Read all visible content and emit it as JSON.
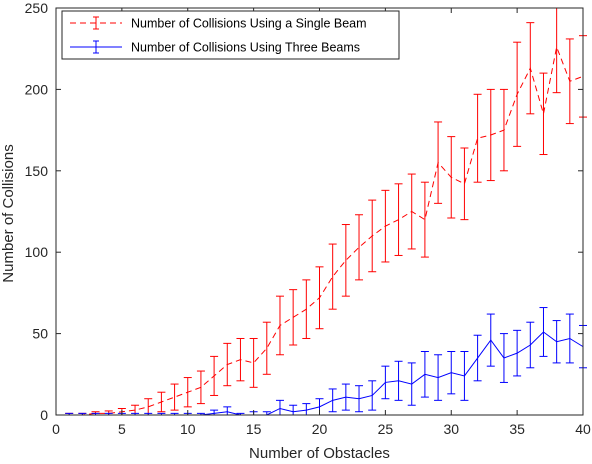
{
  "chart_data": {
    "type": "line",
    "xlabel": "Number of Obstacles",
    "ylabel": "Number of Collisions",
    "xlim": [
      0,
      40
    ],
    "ylim": [
      0,
      250
    ],
    "xticks": [
      0,
      5,
      10,
      15,
      20,
      25,
      30,
      35,
      40
    ],
    "yticks": [
      0,
      50,
      100,
      150,
      200,
      250
    ],
    "grid": false,
    "legend_position": "top-left",
    "x": [
      1,
      2,
      3,
      4,
      5,
      6,
      7,
      8,
      9,
      10,
      11,
      12,
      13,
      14,
      15,
      16,
      17,
      18,
      19,
      20,
      21,
      22,
      23,
      24,
      25,
      26,
      27,
      28,
      29,
      30,
      31,
      32,
      33,
      34,
      35,
      36,
      37,
      38,
      39,
      40
    ],
    "series": [
      {
        "name": "Number of Collisions Using a Single Beam",
        "color": "#ff0000",
        "line_style": "dashed",
        "values": [
          0,
          0,
          1,
          1,
          2,
          3,
          5,
          8,
          11,
          14,
          17,
          24,
          31,
          34,
          32,
          41,
          55,
          60,
          65,
          72,
          85,
          95,
          103,
          110,
          116,
          120,
          125,
          120,
          155,
          146,
          142,
          170,
          172,
          175,
          197,
          213,
          185,
          226,
          205,
          208
        ],
        "error": [
          1,
          1,
          1,
          1.5,
          2,
          3,
          5,
          6,
          8,
          9,
          10,
          12,
          13,
          13,
          15,
          16,
          18,
          17,
          18,
          19,
          20,
          22,
          20,
          22,
          22,
          22,
          23,
          23,
          25,
          25,
          22,
          27,
          28,
          25,
          32,
          28,
          25,
          28,
          26,
          25
        ]
      },
      {
        "name": "Number of Collisions Using Three Beams",
        "color": "#0000ff",
        "line_style": "solid",
        "values": [
          0,
          0,
          0,
          0,
          0,
          0,
          0,
          0,
          0,
          0,
          0,
          1,
          2,
          0,
          0,
          0,
          4,
          2,
          3,
          5,
          9,
          11,
          10,
          12,
          20,
          21,
          19,
          25,
          23,
          26,
          24,
          35,
          46,
          35,
          38,
          43,
          51,
          45,
          47,
          42
        ],
        "error": [
          1,
          1,
          1,
          1,
          1,
          1,
          1,
          1,
          1,
          1,
          1,
          2,
          3,
          1,
          2,
          2,
          5,
          4,
          4,
          5,
          7,
          8,
          8,
          9,
          10,
          12,
          13,
          14,
          14,
          13,
          15,
          14,
          16,
          15,
          14,
          14,
          15,
          13,
          15,
          13
        ]
      }
    ]
  }
}
